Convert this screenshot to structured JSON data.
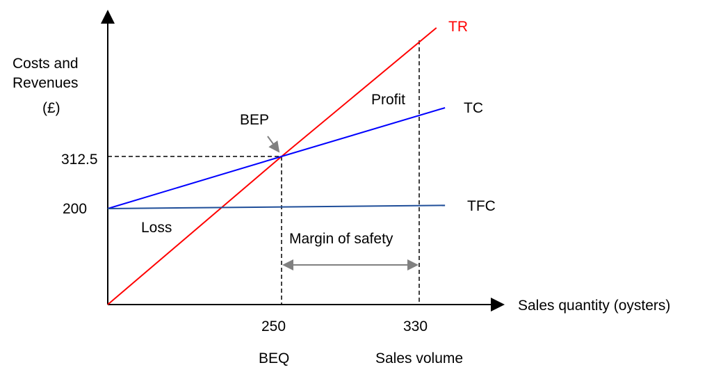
{
  "chart_data": {
    "type": "line",
    "title": "",
    "xlabel": "Sales quantity (oysters)",
    "ylabel_lines": [
      "Costs and",
      "Revenues",
      "(£)"
    ],
    "x_ticks": [
      {
        "value": 250,
        "label": "250",
        "sublabel": "BEQ"
      },
      {
        "value": 330,
        "label": "330",
        "sublabel": "Sales volume"
      }
    ],
    "y_ticks": [
      {
        "value": 200,
        "label": "200"
      },
      {
        "value": 312.5,
        "label": "312.5"
      }
    ],
    "series": [
      {
        "name": "TR",
        "color": "#ff0000",
        "points": [
          [
            0,
            0
          ],
          [
            250,
            312.5
          ],
          [
            340,
            590
          ]
        ]
      },
      {
        "name": "TC",
        "color": "#0000ff",
        "points": [
          [
            0,
            200
          ],
          [
            250,
            312.5
          ],
          [
            345,
            417.5
          ]
        ]
      },
      {
        "name": "TFC",
        "color": "#1f4e99",
        "points": [
          [
            0,
            200
          ],
          [
            345,
            207
          ]
        ]
      }
    ],
    "break_even": {
      "label": "BEP",
      "x": 250,
      "y": 312.5
    },
    "sales_volume": {
      "x": 330,
      "tr_value": 563
    },
    "annotations": {
      "profit": "Profit",
      "loss": "Loss",
      "margin": "Margin of safety"
    },
    "grid": false
  }
}
